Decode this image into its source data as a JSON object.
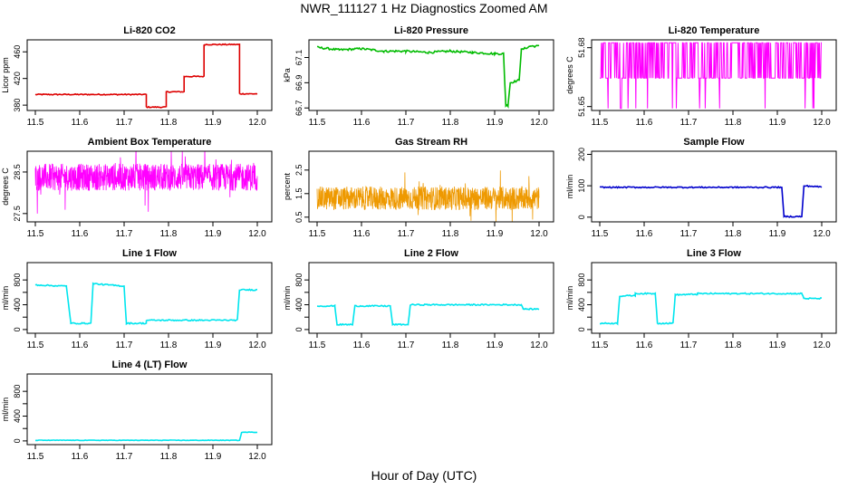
{
  "page": {
    "title": "NWR_111127  1 Hz Diagnostics Zoomed AM",
    "xlabel": "Hour of Day (UTC)"
  },
  "chart_data": [
    {
      "type": "line",
      "title": "Li-820 CO2",
      "ylabel": "Licor ppm",
      "xlim": [
        11.5,
        12.0
      ],
      "ylim": [
        372,
        478
      ],
      "yticks": [
        380,
        420,
        460
      ],
      "xticks": [
        "11.5",
        "11.6",
        "11.7",
        "11.8",
        "11.9",
        "12.0"
      ],
      "color": "#dd0000",
      "points": [
        [
          11.5,
          396
        ],
        [
          11.75,
          396
        ],
        [
          11.75,
          377
        ],
        [
          11.795,
          377
        ],
        [
          11.795,
          400
        ],
        [
          11.835,
          400
        ],
        [
          11.835,
          423
        ],
        [
          11.88,
          423
        ],
        [
          11.88,
          471
        ],
        [
          11.96,
          471
        ],
        [
          11.96,
          397
        ],
        [
          12.0,
          397
        ]
      ],
      "noise": 0.8
    },
    {
      "type": "line",
      "title": "Li-820 Pressure",
      "ylabel": "kPa",
      "xlim": [
        11.5,
        12.0
      ],
      "ylim": [
        66.68,
        67.24
      ],
      "yticks": [
        66.7,
        66.9,
        67.1
      ],
      "xticks": [
        "11.5",
        "11.6",
        "11.7",
        "11.8",
        "11.9",
        "12.0"
      ],
      "color": "#00bb00",
      "points": [
        [
          11.5,
          67.18
        ],
        [
          11.55,
          67.16
        ],
        [
          11.6,
          67.17
        ],
        [
          11.65,
          67.15
        ],
        [
          11.7,
          67.15
        ],
        [
          11.75,
          67.14
        ],
        [
          11.8,
          67.15
        ],
        [
          11.85,
          67.14
        ],
        [
          11.9,
          67.13
        ],
        [
          11.92,
          67.13
        ],
        [
          11.925,
          66.72
        ],
        [
          11.93,
          66.72
        ],
        [
          11.935,
          66.9
        ],
        [
          11.955,
          66.92
        ],
        [
          11.96,
          67.16
        ],
        [
          11.98,
          67.19
        ],
        [
          12.0,
          67.19
        ]
      ],
      "noise": 0.008
    },
    {
      "type": "line",
      "title": "Li-820 Temperature",
      "ylabel": "degrees C",
      "xlim": [
        11.5,
        12.0
      ],
      "ylim": [
        51.648,
        51.684
      ],
      "yticks": [
        51.65,
        51.68
      ],
      "ytick_labels": [
        "51.65",
        "51.68"
      ],
      "xticks": [
        "11.5",
        "11.6",
        "11.7",
        "11.8",
        "11.9",
        "12.0"
      ],
      "color": "#ff00ff",
      "pattern": "toggle",
      "levels": [
        51.6645,
        51.6825
      ]
    },
    {
      "type": "line",
      "title": "Ambient Box Temperature",
      "ylabel": "degrees C",
      "xlim": [
        11.5,
        12.0
      ],
      "ylim": [
        27.3,
        29.0
      ],
      "yticks": [
        27.5,
        28.5
      ],
      "xticks": [
        "11.5",
        "11.6",
        "11.7",
        "11.8",
        "11.9",
        "12.0"
      ],
      "color": "#ff00ff",
      "pattern": "band",
      "band": [
        28.05,
        28.7
      ]
    },
    {
      "type": "line",
      "title": "Gas Stream RH",
      "ylabel": "percent",
      "xlim": [
        11.5,
        12.0
      ],
      "ylim": [
        0.3,
        3.3
      ],
      "yticks": [
        0.5,
        1.5,
        2.5
      ],
      "xticks": [
        "11.5",
        "11.6",
        "11.7",
        "11.8",
        "11.9",
        "12.0"
      ],
      "color": "#ee9900",
      "pattern": "band",
      "band": [
        0.8,
        1.8
      ]
    },
    {
      "type": "line",
      "title": "Sample Flow",
      "ylabel": "ml/min",
      "xlim": [
        11.5,
        12.0
      ],
      "ylim": [
        -15,
        210
      ],
      "yticks": [
        0,
        100,
        200
      ],
      "xticks": [
        "11.5",
        "11.6",
        "11.7",
        "11.8",
        "11.9",
        "12.0"
      ],
      "color": "#0000cc",
      "points": [
        [
          11.5,
          95
        ],
        [
          11.91,
          95
        ],
        [
          11.915,
          2
        ],
        [
          11.955,
          2
        ],
        [
          11.96,
          100
        ],
        [
          12.0,
          96
        ]
      ],
      "noise": 2
    },
    {
      "type": "line",
      "title": "Line 1 Flow",
      "ylabel": "ml/min",
      "xlim": [
        11.5,
        12.0
      ],
      "ylim": [
        -60,
        1080
      ],
      "yticks": [
        0,
        200,
        400,
        600,
        800
      ],
      "ytick_labels": [
        "0",
        "400",
        "800"
      ],
      "xticks": [
        "11.5",
        "11.6",
        "11.7",
        "11.8",
        "11.9",
        "12.0"
      ],
      "color": "#00e5ee",
      "points": [
        [
          11.5,
          720
        ],
        [
          11.57,
          700
        ],
        [
          11.58,
          100
        ],
        [
          11.625,
          100
        ],
        [
          11.63,
          740
        ],
        [
          11.7,
          700
        ],
        [
          11.705,
          100
        ],
        [
          11.75,
          100
        ],
        [
          11.75,
          150
        ],
        [
          11.955,
          150
        ],
        [
          11.96,
          640
        ],
        [
          12.0,
          640
        ]
      ],
      "noise": 10
    },
    {
      "type": "line",
      "title": "Line 2 Flow",
      "ylabel": "ml/min",
      "xlim": [
        11.5,
        12.0
      ],
      "ylim": [
        -60,
        1080
      ],
      "yticks": [
        0,
        200,
        400,
        600,
        800
      ],
      "ytick_labels": [
        "0",
        "400",
        "800"
      ],
      "xticks": [
        "11.5",
        "11.6",
        "11.7",
        "11.8",
        "11.9",
        "12.0"
      ],
      "color": "#00e5ee",
      "points": [
        [
          11.5,
          380
        ],
        [
          11.54,
          380
        ],
        [
          11.545,
          80
        ],
        [
          11.58,
          80
        ],
        [
          11.585,
          380
        ],
        [
          11.665,
          380
        ],
        [
          11.67,
          80
        ],
        [
          11.705,
          80
        ],
        [
          11.71,
          400
        ],
        [
          11.96,
          400
        ],
        [
          11.965,
          330
        ],
        [
          12.0,
          330
        ]
      ],
      "noise": 10
    },
    {
      "type": "line",
      "title": "Line 3 Flow",
      "ylabel": "ml/min",
      "xlim": [
        11.5,
        12.0
      ],
      "ylim": [
        -60,
        1080
      ],
      "yticks": [
        0,
        200,
        400,
        600,
        800
      ],
      "ytick_labels": [
        "0",
        "400",
        "800"
      ],
      "xticks": [
        "11.5",
        "11.6",
        "11.7",
        "11.8",
        "11.9",
        "12.0"
      ],
      "color": "#00e5ee",
      "points": [
        [
          11.5,
          100
        ],
        [
          11.54,
          100
        ],
        [
          11.545,
          540
        ],
        [
          11.58,
          550
        ],
        [
          11.58,
          580
        ],
        [
          11.625,
          580
        ],
        [
          11.63,
          100
        ],
        [
          11.665,
          100
        ],
        [
          11.67,
          560
        ],
        [
          11.72,
          570
        ],
        [
          11.72,
          580
        ],
        [
          11.955,
          580
        ],
        [
          11.96,
          500
        ],
        [
          12.0,
          500
        ]
      ],
      "noise": 10
    },
    {
      "type": "line",
      "title": "Line 4 (LT) Flow",
      "ylabel": "ml/min",
      "xlim": [
        11.5,
        12.0
      ],
      "ylim": [
        -60,
        1080
      ],
      "yticks": [
        0,
        200,
        400,
        600,
        800
      ],
      "ytick_labels": [
        "0",
        "400",
        "800"
      ],
      "xticks": [
        "11.5",
        "11.6",
        "11.7",
        "11.8",
        "11.9",
        "12.0"
      ],
      "color": "#00e5ee",
      "points": [
        [
          11.5,
          10
        ],
        [
          11.96,
          10
        ],
        [
          11.965,
          140
        ],
        [
          12.0,
          140
        ]
      ],
      "noise": 4
    }
  ]
}
